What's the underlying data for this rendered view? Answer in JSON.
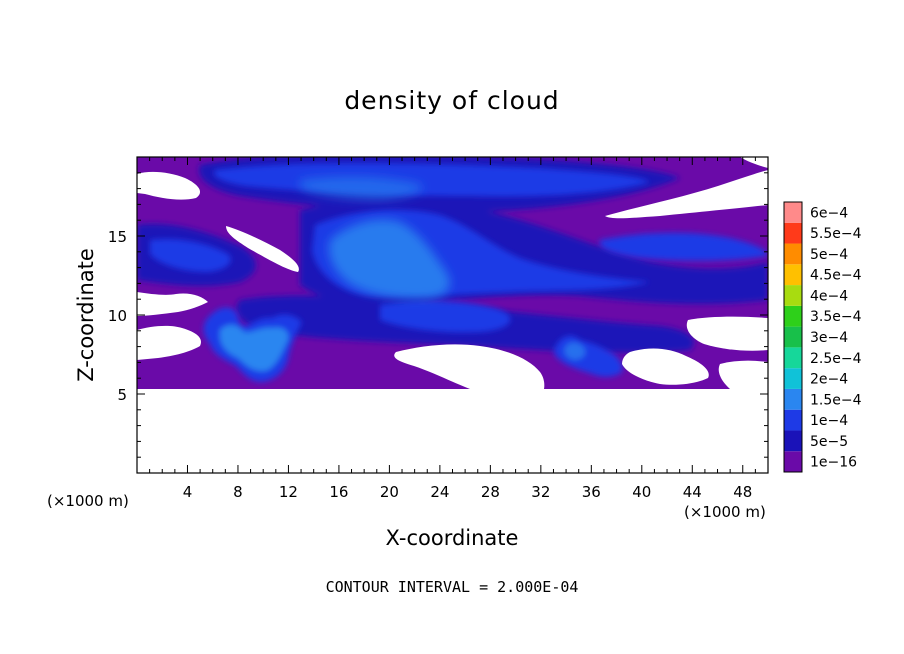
{
  "chart_data": {
    "type": "heatmap",
    "title": "density of cloud",
    "xlabel": "X-coordinate",
    "ylabel": "Z-coordinate",
    "x_unit": "(×1000 m)",
    "xlim": [
      0,
      50
    ],
    "ylim": [
      0,
      20
    ],
    "x_ticks": [
      4,
      8,
      12,
      16,
      20,
      24,
      28,
      32,
      36,
      40,
      44,
      48
    ],
    "y_ticks": [
      5,
      10,
      15
    ],
    "colorbar": {
      "levels": [
        "1e-16",
        "5e-5",
        "1e-4",
        "1.5e-4",
        "2e-4",
        "2.5e-4",
        "3e-4",
        "3.5e-4",
        "4e-4",
        "4.5e-4",
        "5e-4",
        "5.5e-4",
        "6e-4"
      ],
      "colors": [
        "#6a0aa8",
        "#1a12b8",
        "#1e3ae6",
        "#2a86f0",
        "#10c2d8",
        "#16d79a",
        "#18c04a",
        "#2ed01a",
        "#a8dc10",
        "#ffc000",
        "#ff8c00",
        "#ff3a1a",
        "#ff8a8a"
      ]
    },
    "contour_interval": "CONTOUR INTERVAL = 2.000E-04",
    "cloud_base_z": 5,
    "cloud_top_z": 19.5
  }
}
